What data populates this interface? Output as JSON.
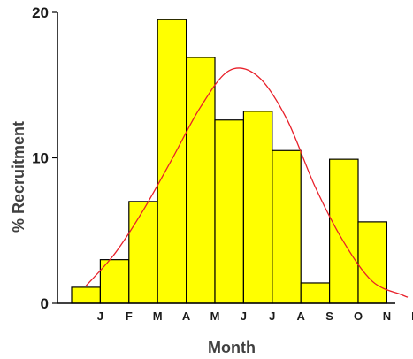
{
  "chart_data": {
    "type": "bar",
    "categories": [
      "J",
      "F",
      "M",
      "A",
      "M",
      "J",
      "J",
      "A",
      "S",
      "O",
      "N",
      "D"
    ],
    "series": [
      {
        "type": "bar",
        "values": [
          1.1,
          3.0,
          7.0,
          19.5,
          16.9,
          12.6,
          13.2,
          10.5,
          1.4,
          9.9,
          5.6,
          0
        ],
        "color": "#ffff00",
        "edge_color": "#000000"
      },
      {
        "type": "line",
        "values": [
          1.2,
          3.4,
          6.4,
          9.9,
          13.5,
          16.0,
          15.6,
          12.7,
          8.0,
          4.2,
          1.5,
          0.6
        ],
        "color": "#e8202a"
      }
    ],
    "title": "",
    "xlabel": "Month",
    "ylabel": "% Recruitment",
    "ylim": [
      0,
      20
    ],
    "yticks": [
      0,
      10,
      20
    ],
    "grid": false,
    "legend": "none"
  }
}
